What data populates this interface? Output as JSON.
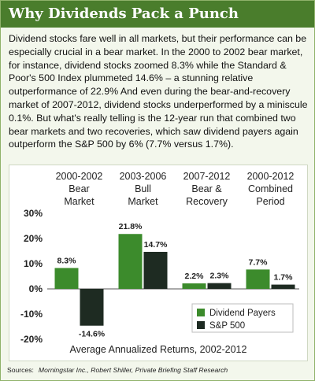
{
  "title": "Why Dividends Pack a Punch",
  "intro": "Dividend stocks fare well in all markets, but their performance can be especially crucial in a bear market. In the 2000 to 2002 bear market, for instance, dividend stocks zoomed 8.3% while the Standard & Poor's 500 Index plummeted 14.6% – a stunning relative outperformance of 22.9% And even during the bear-and-recovery market of 2007-2012, dividend stocks underperformed by a miniscule 0.1%.  But what's really telling is the 12-year run that combined two bear markets and two recoveries, which saw dividend payers again outperform the S&P 500 by 6% (7.7% versus 1.7%).",
  "source_label": "Sources:",
  "source_text": "Morningstar Inc., Robert Shiller, Private Briefing Staff Research",
  "colors": {
    "title_bar": "#4a7d2c",
    "dividend": "#3c8b2c",
    "sp500": "#1e2b22"
  },
  "chart_data": {
    "type": "bar",
    "categories": [
      [
        "2000-2002",
        "Bear",
        "Market"
      ],
      [
        "2003-2006",
        "Bull",
        "Market"
      ],
      [
        "2007-2012",
        "Bear &",
        "Recovery"
      ],
      [
        "2000-2012",
        "Combined",
        "Period"
      ]
    ],
    "series": [
      {
        "name": "Dividend Payers",
        "values": [
          8.3,
          21.8,
          2.2,
          7.7
        ],
        "labels": [
          "8.3%",
          "21.8%",
          "2.2%",
          "7.7%"
        ]
      },
      {
        "name": "S&P 500",
        "values": [
          -14.6,
          14.7,
          2.3,
          1.7
        ],
        "labels": [
          "-14.6%",
          "14.7%",
          "2.3%",
          "1.7%"
        ]
      }
    ],
    "ylim": [
      -20,
      30
    ],
    "yticks": [
      30,
      20,
      10,
      0,
      -10,
      -20
    ],
    "ytick_labels": [
      "30%",
      "20%",
      "10%",
      "0%",
      "-10%",
      "-20%"
    ],
    "xlabel": "Average Annualized Returns, 2002-2012",
    "legend_position": "bottom-right",
    "grid": false
  }
}
